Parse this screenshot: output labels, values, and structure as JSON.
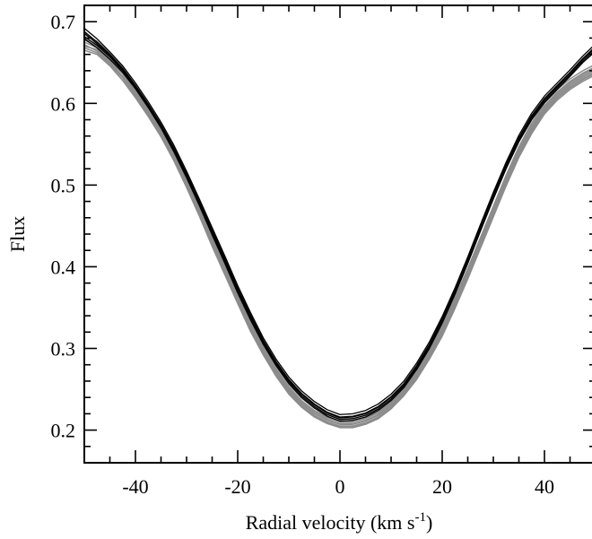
{
  "chart_data": {
    "type": "line",
    "title": "",
    "xlabel": "Radial velocity (km s",
    "xlabel_sup": "-1",
    "xlabel_end": ")",
    "ylabel": "Flux",
    "xlim": [
      -50,
      50
    ],
    "ylim": [
      0.16,
      0.72
    ],
    "x_ticks": [
      -40,
      -20,
      0,
      20,
      40
    ],
    "x_tick_labels": [
      "-40",
      "-20",
      "0",
      "20",
      "40"
    ],
    "y_ticks": [
      0.2,
      0.3,
      0.4,
      0.5,
      0.6,
      0.7
    ],
    "y_tick_labels": [
      "0.2",
      "0.3",
      "0.4",
      "0.5",
      "0.6",
      "0.7"
    ],
    "x_minor_step": 5,
    "y_minor_step": 0.02,
    "grid": false,
    "legend": "none",
    "colors": {
      "gray": "#8c8c8c",
      "black": "#000000"
    },
    "x": [
      -50,
      -47.5,
      -45,
      -42.5,
      -40,
      -37.5,
      -35,
      -32.5,
      -30,
      -27.5,
      -25,
      -22.5,
      -20,
      -17.5,
      -15,
      -12.5,
      -10,
      -7.5,
      -5,
      -2.5,
      0,
      2.5,
      5,
      7.5,
      10,
      12.5,
      15,
      17.5,
      20,
      22.5,
      25,
      27.5,
      30,
      32.5,
      35,
      37.5,
      40,
      42.5,
      45,
      47.5,
      50
    ],
    "series": [
      {
        "color": "gray",
        "values": [
          0.675,
          0.668,
          0.655,
          0.638,
          0.615,
          0.592,
          0.567,
          0.538,
          0.505,
          0.47,
          0.433,
          0.398,
          0.362,
          0.328,
          0.298,
          0.272,
          0.25,
          0.233,
          0.221,
          0.213,
          0.208,
          0.208,
          0.212,
          0.219,
          0.231,
          0.247,
          0.268,
          0.293,
          0.322,
          0.356,
          0.392,
          0.43,
          0.468,
          0.506,
          0.541,
          0.57,
          0.594,
          0.611,
          0.624,
          0.634,
          0.642
        ]
      },
      {
        "color": "gray",
        "values": [
          0.672,
          0.664,
          0.65,
          0.633,
          0.611,
          0.588,
          0.563,
          0.534,
          0.501,
          0.466,
          0.429,
          0.394,
          0.358,
          0.324,
          0.295,
          0.269,
          0.247,
          0.23,
          0.218,
          0.21,
          0.205,
          0.205,
          0.209,
          0.216,
          0.228,
          0.244,
          0.264,
          0.289,
          0.318,
          0.352,
          0.388,
          0.426,
          0.464,
          0.502,
          0.537,
          0.566,
          0.59,
          0.607,
          0.62,
          0.63,
          0.638
        ]
      },
      {
        "color": "gray",
        "values": [
          0.68,
          0.672,
          0.659,
          0.641,
          0.619,
          0.596,
          0.571,
          0.542,
          0.509,
          0.474,
          0.437,
          0.401,
          0.365,
          0.331,
          0.301,
          0.275,
          0.253,
          0.236,
          0.224,
          0.216,
          0.211,
          0.211,
          0.215,
          0.222,
          0.234,
          0.25,
          0.271,
          0.296,
          0.325,
          0.359,
          0.395,
          0.433,
          0.471,
          0.509,
          0.544,
          0.573,
          0.597,
          0.614,
          0.627,
          0.637,
          0.645
        ]
      },
      {
        "color": "gray",
        "values": [
          0.665,
          0.66,
          0.646,
          0.628,
          0.607,
          0.584,
          0.559,
          0.53,
          0.497,
          0.462,
          0.425,
          0.39,
          0.355,
          0.321,
          0.292,
          0.266,
          0.244,
          0.228,
          0.216,
          0.208,
          0.203,
          0.203,
          0.207,
          0.214,
          0.226,
          0.242,
          0.262,
          0.287,
          0.315,
          0.349,
          0.385,
          0.423,
          0.461,
          0.499,
          0.534,
          0.563,
          0.587,
          0.604,
          0.617,
          0.627,
          0.635
        ]
      },
      {
        "color": "gray",
        "values": [
          0.684,
          0.676,
          0.662,
          0.644,
          0.622,
          0.599,
          0.574,
          0.545,
          0.512,
          0.477,
          0.44,
          0.404,
          0.368,
          0.334,
          0.304,
          0.278,
          0.256,
          0.239,
          0.227,
          0.219,
          0.214,
          0.214,
          0.218,
          0.225,
          0.237,
          0.253,
          0.274,
          0.299,
          0.328,
          0.362,
          0.398,
          0.436,
          0.474,
          0.512,
          0.547,
          0.576,
          0.6,
          0.617,
          0.63,
          0.64,
          0.648
        ]
      },
      {
        "color": "gray",
        "values": [
          0.67,
          0.666,
          0.652,
          0.636,
          0.613,
          0.59,
          0.565,
          0.536,
          0.503,
          0.468,
          0.431,
          0.396,
          0.36,
          0.326,
          0.297,
          0.271,
          0.249,
          0.232,
          0.22,
          0.212,
          0.207,
          0.207,
          0.211,
          0.218,
          0.23,
          0.246,
          0.266,
          0.291,
          0.32,
          0.354,
          0.39,
          0.428,
          0.466,
          0.504,
          0.539,
          0.568,
          0.592,
          0.609,
          0.622,
          0.632,
          0.64
        ]
      },
      {
        "color": "gray",
        "values": [
          0.678,
          0.67,
          0.657,
          0.639,
          0.617,
          0.594,
          0.569,
          0.54,
          0.507,
          0.472,
          0.435,
          0.4,
          0.364,
          0.33,
          0.3,
          0.274,
          0.252,
          0.235,
          0.223,
          0.215,
          0.21,
          0.21,
          0.214,
          0.221,
          0.233,
          0.249,
          0.27,
          0.295,
          0.324,
          0.358,
          0.394,
          0.432,
          0.47,
          0.508,
          0.543,
          0.572,
          0.596,
          0.613,
          0.626,
          0.636,
          0.644
        ]
      },
      {
        "color": "gray",
        "values": [
          0.668,
          0.662,
          0.648,
          0.631,
          0.609,
          0.586,
          0.561,
          0.532,
          0.499,
          0.464,
          0.427,
          0.392,
          0.356,
          0.323,
          0.293,
          0.268,
          0.246,
          0.229,
          0.217,
          0.209,
          0.204,
          0.204,
          0.208,
          0.215,
          0.227,
          0.243,
          0.263,
          0.288,
          0.317,
          0.351,
          0.387,
          0.425,
          0.463,
          0.501,
          0.536,
          0.565,
          0.589,
          0.606,
          0.619,
          0.629,
          0.637
        ]
      },
      {
        "color": "black",
        "values": [
          0.688,
          0.675,
          0.66,
          0.643,
          0.622,
          0.599,
          0.574,
          0.546,
          0.514,
          0.48,
          0.445,
          0.41,
          0.374,
          0.341,
          0.31,
          0.284,
          0.262,
          0.245,
          0.232,
          0.222,
          0.216,
          0.217,
          0.221,
          0.229,
          0.241,
          0.257,
          0.279,
          0.305,
          0.336,
          0.371,
          0.409,
          0.449,
          0.488,
          0.525,
          0.558,
          0.585,
          0.606,
          0.622,
          0.638,
          0.655,
          0.67
        ]
      },
      {
        "color": "black",
        "values": [
          0.682,
          0.671,
          0.657,
          0.64,
          0.62,
          0.597,
          0.572,
          0.543,
          0.511,
          0.477,
          0.441,
          0.406,
          0.37,
          0.337,
          0.307,
          0.281,
          0.259,
          0.242,
          0.229,
          0.219,
          0.213,
          0.214,
          0.218,
          0.226,
          0.238,
          0.254,
          0.276,
          0.302,
          0.333,
          0.368,
          0.406,
          0.446,
          0.485,
          0.522,
          0.555,
          0.582,
          0.603,
          0.619,
          0.635,
          0.652,
          0.666
        ]
      },
      {
        "color": "black",
        "values": [
          0.692,
          0.679,
          0.663,
          0.646,
          0.625,
          0.602,
          0.577,
          0.549,
          0.517,
          0.483,
          0.448,
          0.413,
          0.377,
          0.344,
          0.313,
          0.287,
          0.265,
          0.248,
          0.235,
          0.225,
          0.219,
          0.22,
          0.224,
          0.232,
          0.244,
          0.26,
          0.282,
          0.308,
          0.339,
          0.374,
          0.412,
          0.452,
          0.491,
          0.528,
          0.561,
          0.588,
          0.609,
          0.625,
          0.641,
          0.658,
          0.673
        ]
      },
      {
        "color": "black",
        "values": [
          0.679,
          0.668,
          0.654,
          0.638,
          0.618,
          0.595,
          0.57,
          0.541,
          0.509,
          0.475,
          0.439,
          0.404,
          0.368,
          0.335,
          0.305,
          0.279,
          0.257,
          0.24,
          0.227,
          0.217,
          0.211,
          0.212,
          0.216,
          0.224,
          0.236,
          0.252,
          0.274,
          0.3,
          0.331,
          0.366,
          0.404,
          0.444,
          0.483,
          0.52,
          0.553,
          0.58,
          0.601,
          0.617,
          0.633,
          0.65,
          0.664
        ]
      },
      {
        "color": "black",
        "values": [
          0.686,
          0.673,
          0.659,
          0.642,
          0.621,
          0.598,
          0.573,
          0.545,
          0.513,
          0.479,
          0.443,
          0.408,
          0.372,
          0.339,
          0.309,
          0.283,
          0.261,
          0.244,
          0.231,
          0.221,
          0.215,
          0.216,
          0.22,
          0.228,
          0.24,
          0.256,
          0.278,
          0.304,
          0.335,
          0.37,
          0.408,
          0.448,
          0.487,
          0.524,
          0.557,
          0.584,
          0.605,
          0.621,
          0.637,
          0.654,
          0.668
        ]
      }
    ]
  }
}
